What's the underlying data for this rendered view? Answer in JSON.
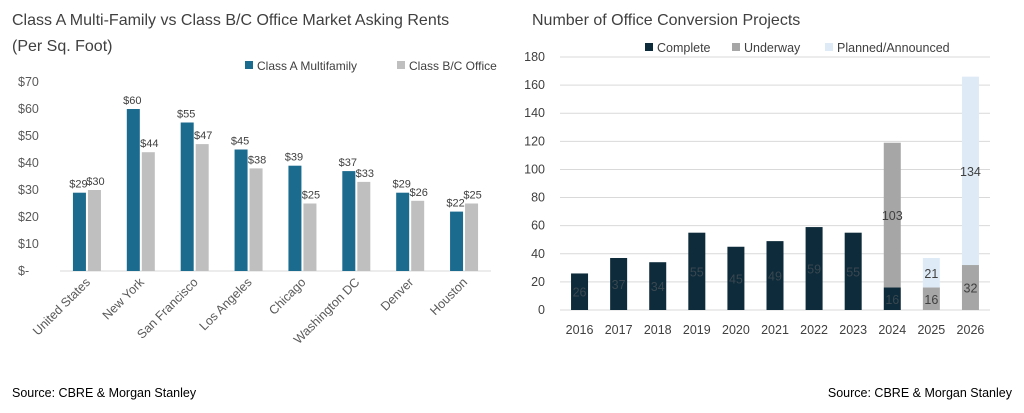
{
  "chart_data": [
    {
      "type": "bar",
      "title": "Class A Multi-Family vs Class B/C Office Market Asking Rents (Per Sq. Foot)",
      "categories": [
        "United States",
        "New York",
        "San Francisco",
        "Los Angeles",
        "Chicago",
        "Washington DC",
        "Denver",
        "Houston"
      ],
      "series": [
        {
          "name": "Class A Multifamily",
          "color": "#1b6b8f",
          "values": [
            29,
            60,
            55,
            45,
            39,
            37,
            29,
            22
          ],
          "labels": [
            "$29",
            "$60",
            "$55",
            "$45",
            "$39",
            "$37",
            "$29",
            "$22"
          ]
        },
        {
          "name": "Class B/C Office",
          "color": "#bfbfbf",
          "values": [
            30,
            44,
            47,
            38,
            25,
            33,
            26,
            25
          ],
          "labels": [
            "$30",
            "$44",
            "$47",
            "$38",
            "$25",
            "$33",
            "$26",
            "$25"
          ]
        }
      ],
      "yticks": [
        "$-",
        "$10",
        "$20",
        "$30",
        "$40",
        "$50",
        "$60",
        "$70"
      ],
      "ylim": [
        0,
        70
      ],
      "legend": "top-right",
      "grid": false,
      "source": "Source: CBRE & Morgan Stanley"
    },
    {
      "type": "bar",
      "stacked": true,
      "title": "Number of Office Conversion Projects",
      "categories": [
        "2016",
        "2017",
        "2018",
        "2019",
        "2020",
        "2021",
        "2022",
        "2023",
        "2024",
        "2025",
        "2026"
      ],
      "series": [
        {
          "name": "Complete",
          "color": "#0d2b3a",
          "values": [
            26,
            37,
            34,
            55,
            45,
            49,
            59,
            55,
            16,
            0,
            0
          ],
          "labels": [
            "26",
            "37",
            "34",
            "55",
            "45",
            "49",
            "59",
            "55",
            "16",
            "",
            ""
          ]
        },
        {
          "name": "Underway",
          "color": "#a6a6a6",
          "values": [
            0,
            0,
            0,
            0,
            0,
            0,
            0,
            0,
            103,
            16,
            32
          ],
          "labels": [
            "",
            "",
            "",
            "",
            "",
            "",
            "",
            "",
            "103",
            "16",
            "32"
          ]
        },
        {
          "name": "Planned/Announced",
          "color": "#deebf7",
          "values": [
            0,
            0,
            0,
            0,
            0,
            0,
            0,
            0,
            0,
            21,
            134
          ],
          "labels": [
            "",
            "",
            "",
            "",
            "",
            "",
            "",
            "",
            "",
            "21",
            "134"
          ]
        }
      ],
      "yticks": [
        "0",
        "20",
        "40",
        "60",
        "80",
        "100",
        "120",
        "140",
        "160",
        "180"
      ],
      "ylim": [
        0,
        180
      ],
      "legend": "top",
      "grid": true,
      "source": "Source: CBRE & Morgan Stanley"
    }
  ]
}
